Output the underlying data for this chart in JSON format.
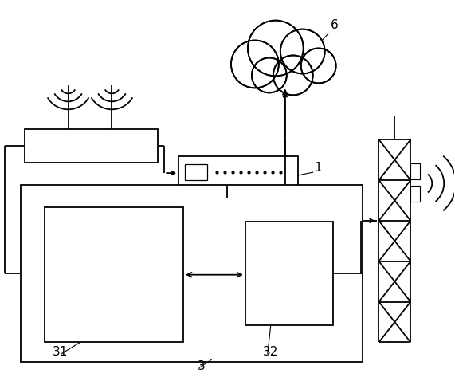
{
  "bg_color": "#ffffff",
  "line_color": "#000000",
  "label_color": "#000000",
  "font_size": 11,
  "fig_w": 5.71,
  "fig_h": 4.83,
  "dpi": 100
}
